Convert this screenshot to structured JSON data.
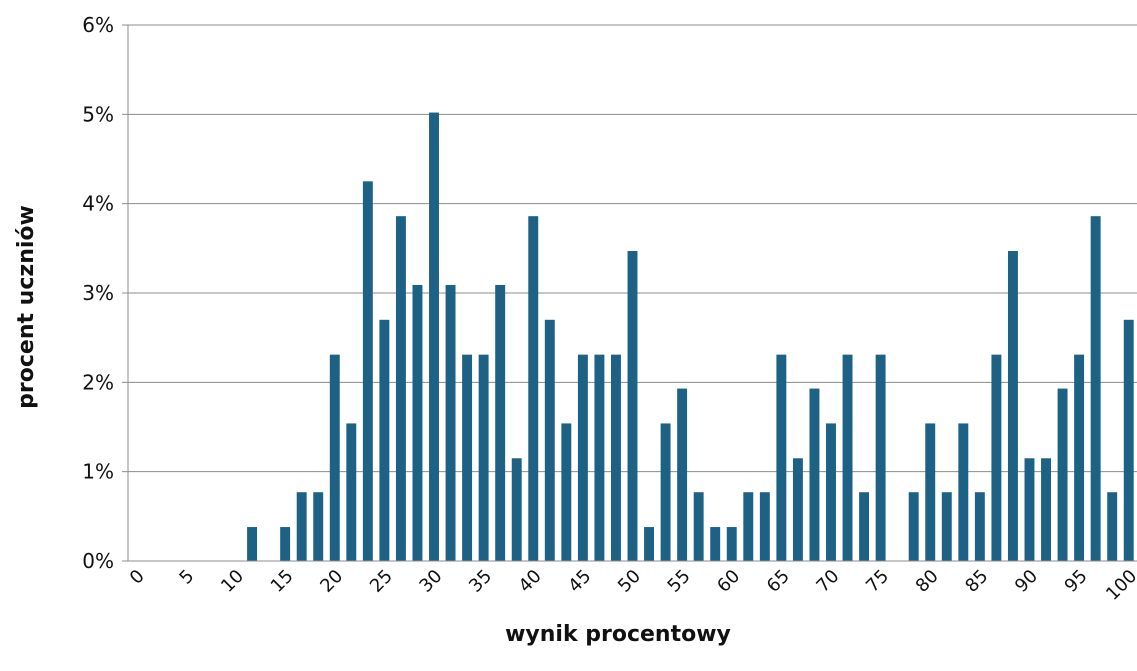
{
  "chart_data": {
    "type": "bar",
    "xlabel": "wynik procentowy",
    "ylabel": "procent uczniów",
    "ylim": [
      0,
      6
    ],
    "y_ticks": [
      "0%",
      "1%",
      "2%",
      "3%",
      "4%",
      "5%",
      "6%"
    ],
    "x_tick_labels": [
      "0",
      "5",
      "10",
      "15",
      "20",
      "25",
      "30",
      "35",
      "40",
      "45",
      "50",
      "55",
      "60",
      "65",
      "70",
      "75",
      "80",
      "85",
      "90",
      "95",
      "100"
    ],
    "grid": true,
    "bar_color": "#1d6184",
    "categories": [
      0,
      2,
      3,
      5,
      7,
      8,
      10,
      12,
      13,
      15,
      17,
      18,
      20,
      22,
      23,
      25,
      27,
      28,
      30,
      32,
      33,
      35,
      37,
      38,
      40,
      42,
      43,
      45,
      47,
      48,
      50,
      52,
      53,
      55,
      57,
      58,
      60,
      62,
      63,
      65,
      67,
      68,
      70,
      72,
      73,
      75,
      77,
      78,
      80,
      82,
      83,
      85,
      87,
      88,
      90,
      92,
      93,
      95,
      97,
      98,
      100
    ],
    "values": [
      0,
      0,
      0,
      0,
      0,
      0,
      0,
      0.38,
      0,
      0.38,
      0.77,
      0.77,
      2.31,
      1.54,
      4.25,
      2.7,
      3.86,
      3.09,
      5.02,
      3.09,
      2.31,
      2.31,
      3.09,
      1.15,
      3.86,
      2.7,
      1.54,
      2.31,
      2.31,
      2.31,
      3.47,
      0.38,
      1.54,
      1.93,
      0.77,
      0.38,
      0.38,
      0.77,
      0.77,
      2.31,
      1.15,
      1.93,
      1.54,
      2.31,
      0.77,
      2.31,
      0,
      0.77,
      1.54,
      0.77,
      1.54,
      0.77,
      2.31,
      3.47,
      1.15,
      1.15,
      1.93,
      2.31,
      3.86,
      0.77,
      2.7
    ]
  }
}
